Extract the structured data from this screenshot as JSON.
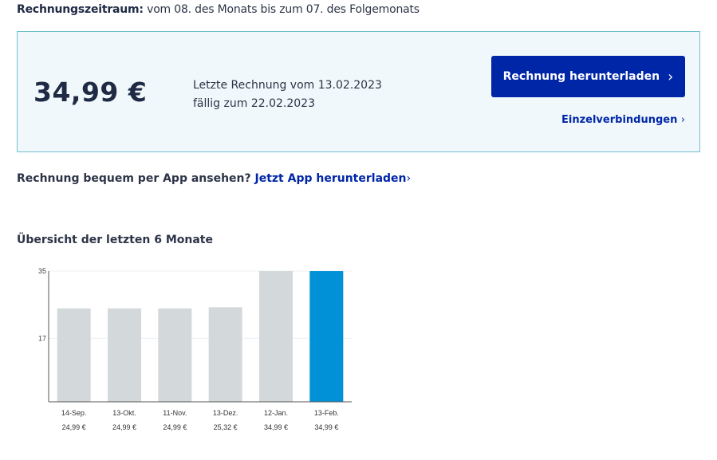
{
  "billing": {
    "period_label": "Rechnungszeitraum:",
    "period_text": "vom 08. des Monats bis zum 07. des Folgemonats"
  },
  "invoice": {
    "amount": "34,99 €",
    "last_invoice": "Letzte Rechnung vom 13.02.2023",
    "due": "fällig zum 22.02.2023",
    "download_button": "Rechnung herunterladen",
    "details_link": "Einzelverbindungen"
  },
  "app_promo": {
    "text": "Rechnung bequem per App ansehen?",
    "link": "Jetzt App herunterladen"
  },
  "overview": {
    "title": "Übersicht der letzten 6 Monate"
  },
  "colors": {
    "accent": "#0026a8",
    "bar_default": "#d3d8db",
    "bar_current": "#0091d6",
    "box_bg": "#f1f8fb",
    "box_border": "#6fbfce"
  },
  "icons": {
    "chevron": "chevron-right-icon"
  },
  "chart_data": {
    "type": "bar",
    "categories": [
      "14-Sep.",
      "13-Okt.",
      "11-Nov.",
      "13-Dez.",
      "12-Jan.",
      "13-Feb."
    ],
    "values": [
      24.99,
      24.99,
      24.99,
      25.32,
      34.99,
      34.99
    ],
    "value_labels": [
      "24,99 €",
      "24,99 €",
      "24,99 €",
      "25,32 €",
      "34,99 €",
      "34,99 €"
    ],
    "yticks": [
      17,
      35
    ],
    "ylim": [
      0,
      35
    ],
    "highlight_index": 5,
    "grid": true
  }
}
